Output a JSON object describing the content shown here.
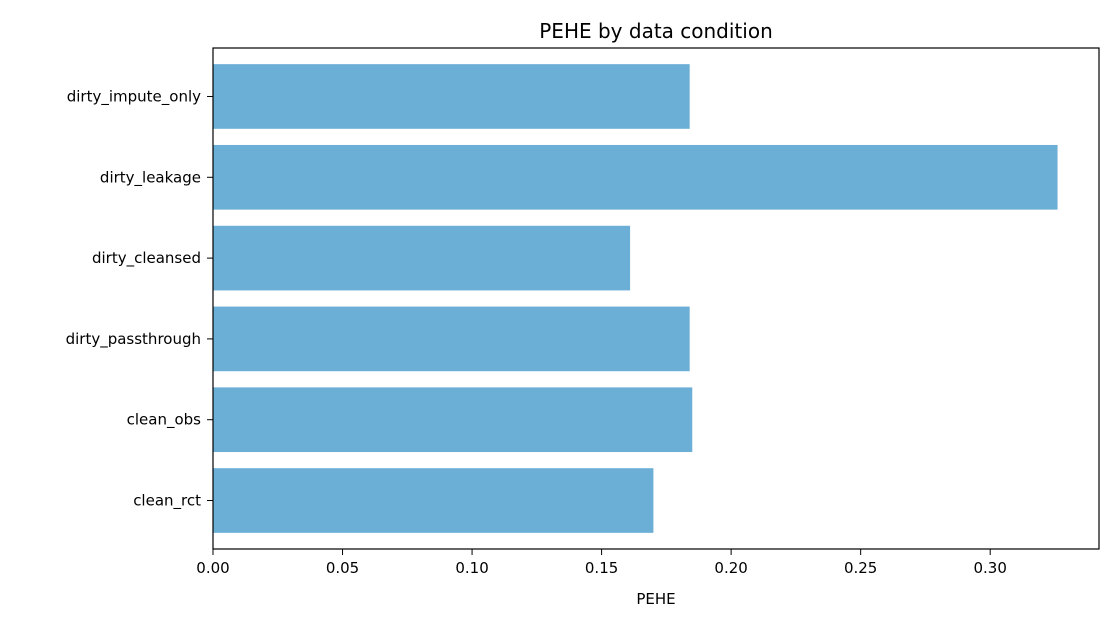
{
  "chart_data": {
    "type": "bar",
    "orientation": "horizontal",
    "title": "PEHE by data condition",
    "xlabel": "PEHE",
    "ylabel": "",
    "categories": [
      "clean_rct",
      "clean_obs",
      "dirty_passthrough",
      "dirty_cleansed",
      "dirty_leakage",
      "dirty_impute_only"
    ],
    "values": [
      0.17,
      0.185,
      0.184,
      0.161,
      0.326,
      0.184
    ],
    "xlim": [
      0,
      0.342
    ],
    "xticks": [
      0.0,
      0.05,
      0.1,
      0.15,
      0.2,
      0.25,
      0.3
    ],
    "xtick_labels": [
      "0.00",
      "0.05",
      "0.10",
      "0.15",
      "0.20",
      "0.25",
      "0.30"
    ],
    "bar_color": "#6baed6",
    "grid": false,
    "legend": "none"
  }
}
